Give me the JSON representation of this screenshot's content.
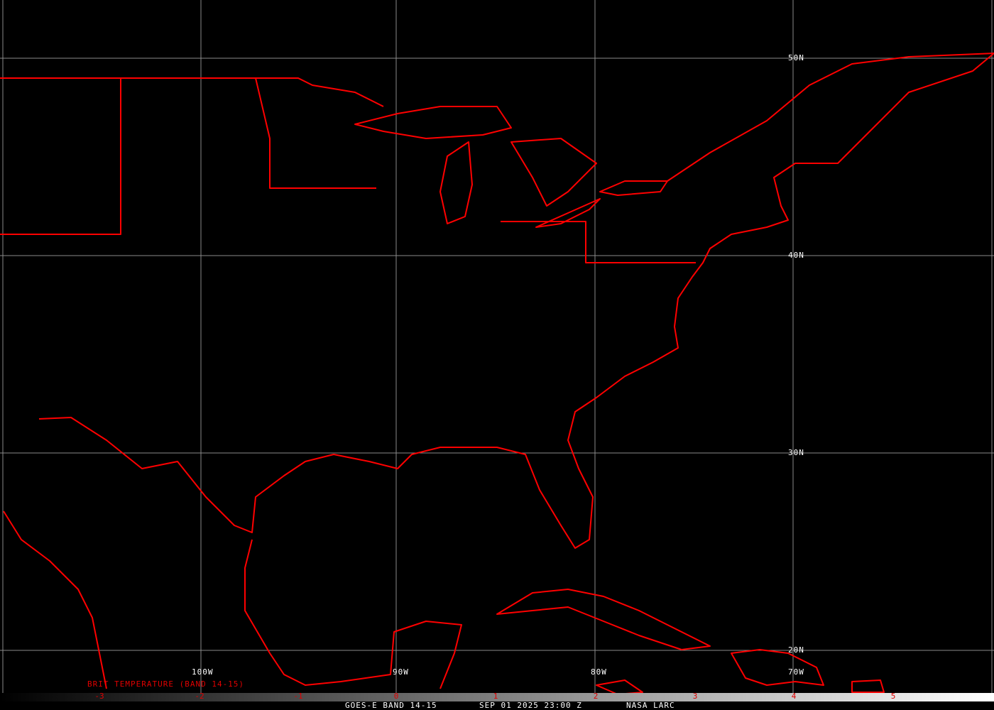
{
  "map": {
    "satellite_product": "GOES-E BAND 14-15",
    "datetime": "SEP 01 2025 23:00 Z",
    "source": "NASA LARC",
    "outline_color": "#ff0000",
    "grid_color": "#808080",
    "lat_labels": [
      "50N",
      "40N",
      "30N",
      "20N"
    ],
    "lon_labels": [
      "100W",
      "90W",
      "80W",
      "70W"
    ]
  },
  "colorbar": {
    "title": "BRIT TEMPERATURE (BAND 14-15)",
    "ticks": [
      "-3",
      "-2",
      "-1",
      "0",
      "1",
      "2",
      "3",
      "4",
      "5"
    ],
    "gradient": [
      "#000000",
      "#ffffff"
    ]
  }
}
